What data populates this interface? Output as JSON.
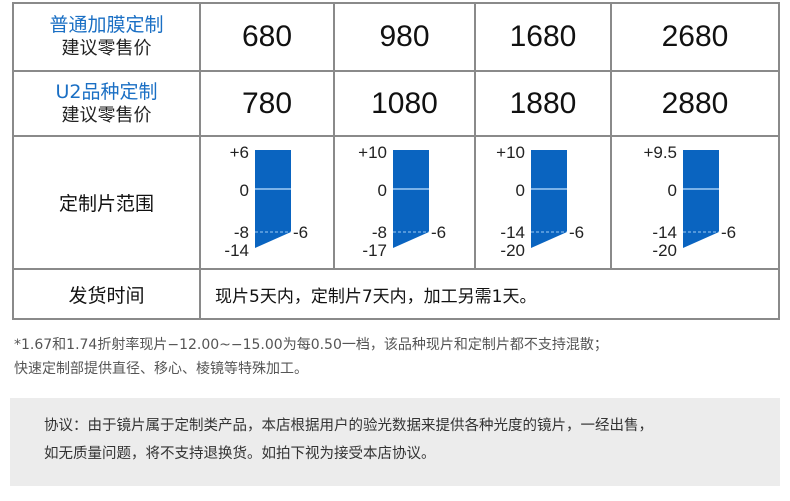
{
  "rows": [
    {
      "title": "普通加膜定制",
      "subtitle": "建议零售价",
      "prices": [
        "680",
        "980",
        "1680",
        "2680"
      ]
    },
    {
      "title": "U2品种定制",
      "subtitle": "建议零售价",
      "prices": [
        "780",
        "1080",
        "1880",
        "2880"
      ]
    }
  ],
  "range": {
    "label": "定制片范围",
    "bar_color": "#0a64c0",
    "columns": [
      {
        "top": "+6",
        "zero": "0",
        "mid": "-8",
        "bottom": "-14",
        "right": "-6"
      },
      {
        "top": "+10",
        "zero": "0",
        "mid": "-8",
        "bottom": "-17",
        "right": "-6"
      },
      {
        "top": "+10",
        "zero": "0",
        "mid": "-14",
        "bottom": "-20",
        "right": "-6"
      },
      {
        "top": "+9.5",
        "zero": "0",
        "mid": "-14",
        "bottom": "-20",
        "right": "-6"
      }
    ]
  },
  "shipping": {
    "label": "发货时间",
    "text": "现片5天内，定制片7天内，加工另需1天。"
  },
  "note": [
    "*1.67和1.74折射率现片−12.00~−15.00为每0.50一档，该品种现片和定制片都不支持混散；",
    "快速定制部提供直径、移心、棱镜等特殊加工。"
  ],
  "agreement": [
    "协议：由于镜片属于定制类产品，本店根据用户的验光数据来提供各种光度的镜片，一经出售，",
    "如无质量问题，将不支持退换货。如拍下视为接受本店协议。"
  ]
}
